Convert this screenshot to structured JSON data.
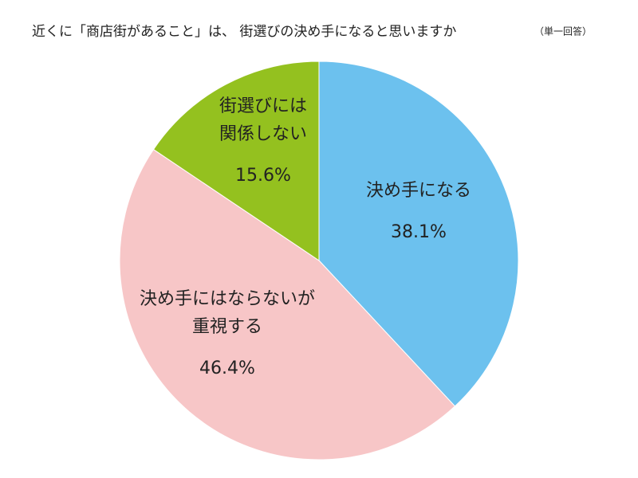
{
  "chart_data": {
    "type": "pie",
    "title": "近くに「商店街があること」は、 街選びの決め手になると思いますか",
    "subtitle": "（単一回答）",
    "categories": [
      [
        "決め手になる"
      ],
      [
        "決め手にはならないが",
        "重視する"
      ],
      [
        "街選びには",
        "関係しない"
      ]
    ],
    "values": [
      38.1,
      46.4,
      15.6
    ],
    "value_labels": [
      "38.1%",
      "46.4%",
      "15.6%"
    ],
    "colors": [
      "#6cc1ee",
      "#f7c6c7",
      "#94c11f"
    ]
  }
}
